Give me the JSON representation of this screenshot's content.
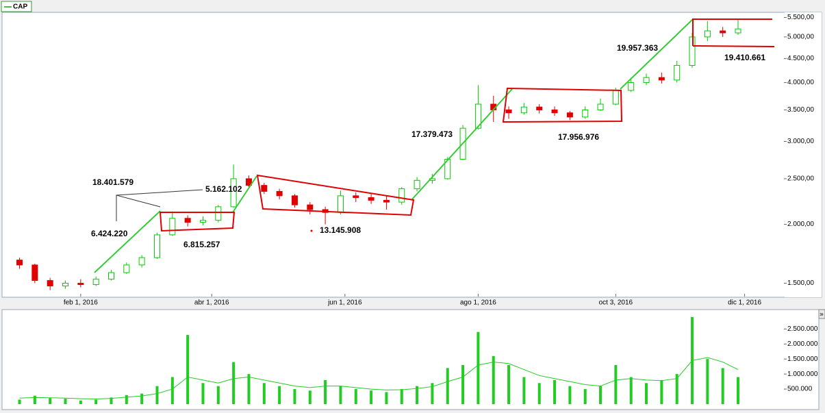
{
  "chart_data": {
    "type": "candlestick",
    "log_scale": true,
    "series": [
      {
        "name": "CAP",
        "color": "#00b000",
        "up_color": "#00cc00",
        "down_color": "#e00000",
        "x": [
          "2016-01-04",
          "2016-01-11",
          "2016-01-18",
          "2016-01-25",
          "2016-02-01",
          "2016-02-08",
          "2016-02-15",
          "2016-02-22",
          "2016-02-29",
          "2016-03-07",
          "2016-03-14",
          "2016-03-21",
          "2016-03-28",
          "2016-04-04",
          "2016-04-11",
          "2016-04-18",
          "2016-04-25",
          "2016-05-02",
          "2016-05-09",
          "2016-05-16",
          "2016-05-23",
          "2016-05-30",
          "2016-06-06",
          "2016-06-13",
          "2016-06-20",
          "2016-06-27",
          "2016-07-04",
          "2016-07-11",
          "2016-07-18",
          "2016-07-25",
          "2016-08-01",
          "2016-08-08",
          "2016-08-15",
          "2016-08-22",
          "2016-08-29",
          "2016-09-05",
          "2016-09-12",
          "2016-09-19",
          "2016-09-26",
          "2016-10-03",
          "2016-10-10",
          "2016-10-17",
          "2016-10-24",
          "2016-10-31",
          "2016-11-07",
          "2016-11-14",
          "2016-11-21",
          "2016-11-28"
        ],
        "open": [
          1680,
          1640,
          1520,
          1480,
          1500,
          1490,
          1530,
          1580,
          1640,
          1700,
          1900,
          2060,
          2020,
          2040,
          2180,
          2500,
          2420,
          2350,
          2300,
          2200,
          2150,
          2120,
          2300,
          2280,
          2250,
          2230,
          2380,
          2480,
          2500,
          2750,
          3200,
          3600,
          3500,
          3450,
          3550,
          3500,
          3450,
          3380,
          3500,
          3600,
          3850,
          4000,
          4100,
          4050,
          4350,
          5000,
          5150,
          5100
        ],
        "high": [
          1700,
          1650,
          1540,
          1520,
          1530,
          1550,
          1600,
          1660,
          1720,
          1920,
          2130,
          2090,
          2080,
          2200,
          2680,
          2540,
          2450,
          2380,
          2320,
          2230,
          2180,
          2360,
          2340,
          2320,
          2300,
          2400,
          2520,
          2560,
          2780,
          3250,
          3950,
          3750,
          3560,
          3620,
          3600,
          3560,
          3480,
          3560,
          3700,
          3900,
          4100,
          4180,
          4200,
          4450,
          5100,
          5400,
          5250,
          5450
        ],
        "low": [
          1610,
          1500,
          1450,
          1460,
          1470,
          1480,
          1520,
          1570,
          1620,
          1690,
          1890,
          1980,
          1990,
          2020,
          2170,
          2380,
          2320,
          2260,
          2170,
          2100,
          2000,
          2100,
          2230,
          2210,
          2150,
          2200,
          2350,
          2440,
          2490,
          2740,
          3180,
          3300,
          3350,
          3420,
          3440,
          3400,
          3330,
          3350,
          3480,
          3580,
          3820,
          3950,
          3980,
          4000,
          4300,
          4900,
          5000,
          5050
        ],
        "close": [
          1640,
          1520,
          1480,
          1500,
          1490,
          1530,
          1580,
          1640,
          1700,
          1900,
          2060,
          2020,
          2040,
          2180,
          2500,
          2420,
          2350,
          2300,
          2200,
          2150,
          2120,
          2300,
          2280,
          2250,
          2230,
          2380,
          2480,
          2500,
          2750,
          3200,
          3600,
          3500,
          3450,
          3550,
          3500,
          3450,
          3380,
          3500,
          3600,
          3850,
          4000,
          4100,
          4050,
          4350,
          5000,
          5150,
          5100,
          5200
        ]
      }
    ],
    "xlim": [
      "2015-12-27",
      "2016-12-19"
    ],
    "xticks": [
      {
        "value": "2016-02-01",
        "label": "feb 1, 2016"
      },
      {
        "value": "2016-04-01",
        "label": "abr 1, 2016"
      },
      {
        "value": "2016-06-01",
        "label": "jun 1, 2016"
      },
      {
        "value": "2016-08-01",
        "label": "ago 1, 2016"
      },
      {
        "value": "2016-10-03",
        "label": "oct 3, 2016"
      },
      {
        "value": "2016-12-01",
        "label": "dic 1, 2016"
      }
    ],
    "ylim": [
      1410,
      5620
    ],
    "yticks": [
      {
        "value": 1500,
        "label": "1.500,00"
      },
      {
        "value": 2000,
        "label": "2.000,00"
      },
      {
        "value": 2500,
        "label": "2.500,00"
      },
      {
        "value": 3000,
        "label": "3.000,00"
      },
      {
        "value": 3500,
        "label": "3.500,00"
      },
      {
        "value": 4000,
        "label": "4.000,00"
      },
      {
        "value": 4500,
        "label": "4.500,00"
      },
      {
        "value": 5000,
        "label": "5.000,00"
      },
      {
        "value": 5500,
        "label": "5.500,00"
      }
    ],
    "annotations": [
      {
        "text": "18.401.579",
        "color": "#000000"
      },
      {
        "text": "5.162.102",
        "color": "#1e7a1e"
      },
      {
        "text": "6.424.220",
        "color": "#1e7a1e"
      },
      {
        "text": "6.815.257",
        "color": "#e00000"
      },
      {
        "text": "13.145.908",
        "color": "#e00000"
      },
      {
        "text": "17.379.473",
        "color": "#33bb33"
      },
      {
        "text": "17.956.976",
        "color": "#e00000"
      },
      {
        "text": "19.957.363",
        "color": "#1e7a1e"
      },
      {
        "text": "19.410.661",
        "color": "#e00000"
      }
    ],
    "volume": {
      "type": "bar",
      "color": "#22cc22",
      "values": [
        150000,
        280000,
        200000,
        180000,
        120000,
        150000,
        220000,
        300000,
        350000,
        600000,
        900000,
        2300000,
        700000,
        600000,
        1400000,
        1000000,
        700000,
        600000,
        500000,
        450000,
        800000,
        600000,
        500000,
        450000,
        400000,
        500000,
        600000,
        700000,
        1200000,
        1300000,
        2400000,
        1600000,
        1300000,
        900000,
        700000,
        800000,
        600000,
        500000,
        600000,
        1300000,
        900000,
        700000,
        800000,
        1000000,
        2900000,
        1500000,
        1200000,
        900000
      ],
      "average": {
        "color": "#22cc22",
        "values": [
          200000,
          220000,
          210000,
          200000,
          180000,
          170000,
          190000,
          230000,
          270000,
          350000,
          500000,
          900000,
          800000,
          700000,
          850000,
          900000,
          800000,
          700000,
          600000,
          550000,
          600000,
          600000,
          550000,
          500000,
          470000,
          480000,
          520000,
          580000,
          750000,
          900000,
          1300000,
          1400000,
          1350000,
          1150000,
          950000,
          850000,
          750000,
          650000,
          600000,
          800000,
          850000,
          800000,
          780000,
          850000,
          1450000,
          1550000,
          1400000,
          1150000
        ]
      },
      "ylim": [
        0,
        3100000
      ],
      "yticks": [
        {
          "value": 500000,
          "label": "500.000"
        },
        {
          "value": 1000000,
          "label": "1.000.000"
        },
        {
          "value": 1500000,
          "label": "1.500.000"
        },
        {
          "value": 2000000,
          "label": "2.000.000"
        },
        {
          "value": 2500000,
          "label": "2.500.000"
        }
      ]
    }
  }
}
